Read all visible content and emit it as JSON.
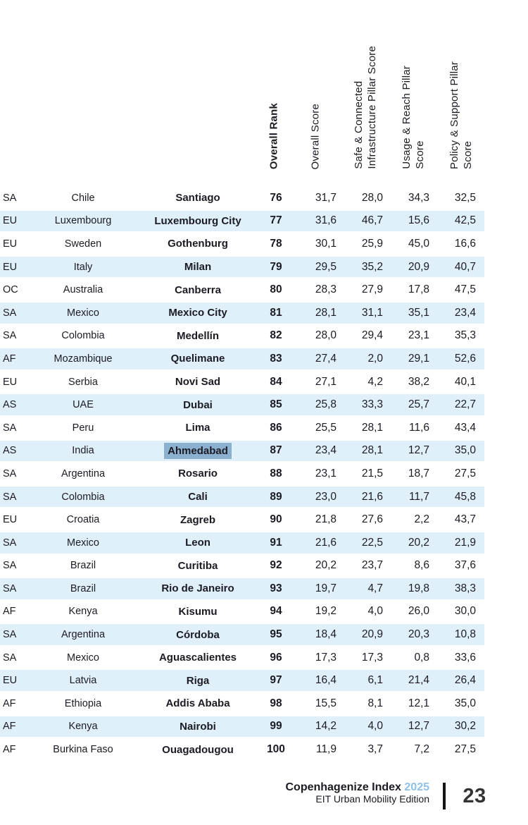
{
  "table": {
    "columns": [
      {
        "key": "rank",
        "label": "Overall Rank"
      },
      {
        "key": "score",
        "label": "Overall Score"
      },
      {
        "key": "infra",
        "label": "Safe & Connected\nInfrastructure Pillar Score"
      },
      {
        "key": "usage",
        "label": "Usage & Reach Pillar\nScore"
      },
      {
        "key": "policy",
        "label": "Policy & Support Pillar\nScore"
      }
    ],
    "rows": [
      {
        "region": "SA",
        "country": "Chile",
        "city": "Santiago",
        "rank": "76",
        "score": "31,7",
        "infra": "28,0",
        "usage": "34,3",
        "policy": "32,5",
        "selected": false
      },
      {
        "region": "EU",
        "country": "Luxembourg",
        "city": "Luxembourg City",
        "rank": "77",
        "score": "31,6",
        "infra": "46,7",
        "usage": "15,6",
        "policy": "42,5",
        "selected": false
      },
      {
        "region": "EU",
        "country": "Sweden",
        "city": "Gothenburg",
        "rank": "78",
        "score": "30,1",
        "infra": "25,9",
        "usage": "45,0",
        "policy": "16,6",
        "selected": false
      },
      {
        "region": "EU",
        "country": "Italy",
        "city": "Milan",
        "rank": "79",
        "score": "29,5",
        "infra": "35,2",
        "usage": "20,9",
        "policy": "40,7",
        "selected": false
      },
      {
        "region": "OC",
        "country": "Australia",
        "city": "Canberra",
        "rank": "80",
        "score": "28,3",
        "infra": "27,9",
        "usage": "17,8",
        "policy": "47,5",
        "selected": false
      },
      {
        "region": "SA",
        "country": "Mexico",
        "city": "Mexico City",
        "rank": "81",
        "score": "28,1",
        "infra": "31,1",
        "usage": "35,1",
        "policy": "23,4",
        "selected": false
      },
      {
        "region": "SA",
        "country": "Colombia",
        "city": "Medellín",
        "rank": "82",
        "score": "28,0",
        "infra": "29,4",
        "usage": "23,1",
        "policy": "35,3",
        "selected": false
      },
      {
        "region": "AF",
        "country": "Mozambique",
        "city": "Quelimane",
        "rank": "83",
        "score": "27,4",
        "infra": "2,0",
        "usage": "29,1",
        "policy": "52,6",
        "selected": false
      },
      {
        "region": "EU",
        "country": "Serbia",
        "city": "Novi Sad",
        "rank": "84",
        "score": "27,1",
        "infra": "4,2",
        "usage": "38,2",
        "policy": "40,1",
        "selected": false
      },
      {
        "region": "AS",
        "country": "UAE",
        "city": "Dubai",
        "rank": "85",
        "score": "25,8",
        "infra": "33,3",
        "usage": "25,7",
        "policy": "22,7",
        "selected": false
      },
      {
        "region": "SA",
        "country": "Peru",
        "city": "Lima",
        "rank": "86",
        "score": "25,5",
        "infra": "28,1",
        "usage": "11,6",
        "policy": "43,4",
        "selected": false
      },
      {
        "region": "AS",
        "country": "India",
        "city": "Ahmedabad",
        "rank": "87",
        "score": "23,4",
        "infra": "28,1",
        "usage": "12,7",
        "policy": "35,0",
        "selected": true
      },
      {
        "region": "SA",
        "country": "Argentina",
        "city": "Rosario",
        "rank": "88",
        "score": "23,1",
        "infra": "21,5",
        "usage": "18,7",
        "policy": "27,5",
        "selected": false
      },
      {
        "region": "SA",
        "country": "Colombia",
        "city": "Cali",
        "rank": "89",
        "score": "23,0",
        "infra": "21,6",
        "usage": "11,7",
        "policy": "45,8",
        "selected": false
      },
      {
        "region": "EU",
        "country": "Croatia",
        "city": "Zagreb",
        "rank": "90",
        "score": "21,8",
        "infra": "27,6",
        "usage": "2,2",
        "policy": "43,7",
        "selected": false
      },
      {
        "region": "SA",
        "country": "Mexico",
        "city": "Leon",
        "rank": "91",
        "score": "21,6",
        "infra": "22,5",
        "usage": "20,2",
        "policy": "21,9",
        "selected": false
      },
      {
        "region": "SA",
        "country": "Brazil",
        "city": "Curitiba",
        "rank": "92",
        "score": "20,2",
        "infra": "23,7",
        "usage": "8,6",
        "policy": "37,6",
        "selected": false
      },
      {
        "region": "SA",
        "country": "Brazil",
        "city": "Rio de Janeiro",
        "rank": "93",
        "score": "19,7",
        "infra": "4,7",
        "usage": "19,8",
        "policy": "38,3",
        "selected": false
      },
      {
        "region": "AF",
        "country": "Kenya",
        "city": "Kisumu",
        "rank": "94",
        "score": "19,2",
        "infra": "4,0",
        "usage": "26,0",
        "policy": "30,0",
        "selected": false
      },
      {
        "region": "SA",
        "country": "Argentina",
        "city": "Córdoba",
        "rank": "95",
        "score": "18,4",
        "infra": "20,9",
        "usage": "20,3",
        "policy": "10,8",
        "selected": false
      },
      {
        "region": "SA",
        "country": "Mexico",
        "city": "Aguascalientes",
        "rank": "96",
        "score": "17,3",
        "infra": "17,3",
        "usage": "0,8",
        "policy": "33,6",
        "selected": false
      },
      {
        "region": "EU",
        "country": "Latvia",
        "city": "Riga",
        "rank": "97",
        "score": "16,4",
        "infra": "6,1",
        "usage": "21,4",
        "policy": "26,4",
        "selected": false
      },
      {
        "region": "AF",
        "country": "Ethiopia",
        "city": "Addis Ababa",
        "rank": "98",
        "score": "15,5",
        "infra": "8,1",
        "usage": "12,1",
        "policy": "35,0",
        "selected": false
      },
      {
        "region": "AF",
        "country": "Kenya",
        "city": "Nairobi",
        "rank": "99",
        "score": "14,2",
        "infra": "4,0",
        "usage": "12,7",
        "policy": "30,2",
        "selected": false
      },
      {
        "region": "AF",
        "country": "Burkina Faso",
        "city": "Ouagadougou",
        "rank": "100",
        "score": "11,9",
        "infra": "3,7",
        "usage": "7,2",
        "policy": "27,5",
        "selected": false
      }
    ]
  },
  "footer": {
    "title": "Copenhagenize Index",
    "year": "2025",
    "subtitle": "EIT Urban Mobility Edition",
    "page": "23"
  },
  "colors": {
    "text": "#1b1b24",
    "row_alternate": "#e0f0fa",
    "selection_highlight": "#8cb0cf",
    "year_accent": "#8dc1e7",
    "page_number": "#333333",
    "divider": "#141414"
  }
}
